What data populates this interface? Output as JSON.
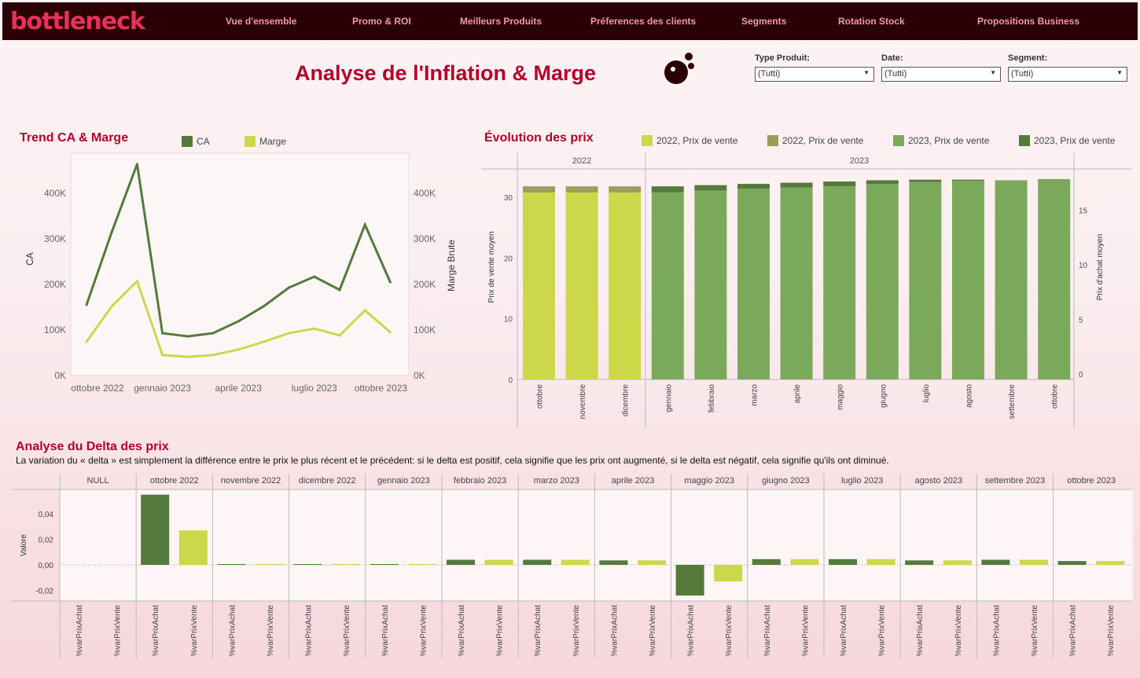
{
  "nav": {
    "logo": "bottleneck",
    "items": [
      "Vue d'ensemble",
      "Promo & ROI",
      "Meilleurs Produits",
      "Préferences des clients",
      "Segments",
      "Rotation Stock",
      "Propositions Business"
    ]
  },
  "title": "Analyse de l'Inflation & Marge",
  "filters": [
    {
      "label": "Type Produit:",
      "value": "(Tutti)"
    },
    {
      "label": "Date:",
      "value": "(Tutti)"
    },
    {
      "label": "Segment:",
      "value": "(Tutti)"
    }
  ],
  "colors": {
    "dark_green": "#547a3c",
    "light_green": "#ccd84a",
    "mid_green": "#7ba95c",
    "olive": "#9c9c5c",
    "brand": "#b5002b"
  },
  "chart_data": [
    {
      "type": "line",
      "title": "Trend CA & Marge",
      "ylabel": "CA",
      "ylabel_right": "Marge Brute",
      "ylim": [
        0,
        500000
      ],
      "yticks": [
        "0K",
        "100K",
        "200K",
        "300K",
        "400K"
      ],
      "xticks": [
        "ottobre 2022",
        "gennaio 2023",
        "aprile 2023",
        "luglio 2023",
        "ottobre 2023"
      ],
      "x": [
        "ottobre 2022",
        "novembre 2022",
        "dicembre 2022",
        "gennaio 2023",
        "febbraio 2023",
        "marzo 2023",
        "aprile 2023",
        "maggio 2023",
        "giugno 2023",
        "luglio 2023",
        "agosto 2023",
        "settembre 2023",
        "ottobre 2023"
      ],
      "series": [
        {
          "name": "CA",
          "values": [
            155000,
            315000,
            464000,
            93000,
            86000,
            93000,
            119000,
            152000,
            193000,
            217000,
            188000,
            331000,
            205000
          ]
        },
        {
          "name": "Marge",
          "values": [
            74000,
            152000,
            207000,
            45000,
            41000,
            45000,
            57000,
            74000,
            93000,
            103000,
            88000,
            143000,
            95000
          ]
        }
      ]
    },
    {
      "type": "bar",
      "title": "Évolution des prix",
      "ylabel": "Prix de vente moyen",
      "ylabel_right": "Prix d'achat moyen",
      "ylim": [
        0,
        34
      ],
      "yticks": [
        0,
        10,
        20,
        30
      ],
      "yticks_right": [
        0,
        5,
        10,
        15
      ],
      "groups": [
        {
          "label": "2022",
          "months": [
            "ottobre",
            "novembre",
            "dicembre"
          ]
        },
        {
          "label": "2023",
          "months": [
            "gennaio",
            "febbraio",
            "marzo",
            "aprile",
            "maggio",
            "giugno",
            "luglio",
            "agosto",
            "settembre",
            "ottobre"
          ]
        }
      ],
      "legend": [
        "2022, Prix de vente",
        "2022, Prix de vente",
        "2023, Prix de vente",
        "2023, Prix de vente"
      ],
      "base": [
        30.8,
        30.8,
        30.8,
        30.8,
        31.1,
        31.4,
        31.6,
        31.8,
        32.2,
        32.5,
        32.7,
        32.8,
        33.0
      ],
      "top": [
        1.0,
        1.0,
        1.0,
        1.0,
        0.9,
        0.8,
        0.8,
        0.8,
        0.6,
        0.4,
        0.2,
        0,
        0
      ]
    },
    {
      "type": "bar",
      "title": "Analyse du Delta des prix",
      "ylabel": "Valore",
      "ylim": [
        -0.025,
        0.06
      ],
      "yticks": [
        "-0,02",
        "0,00",
        "0,02",
        "0,04"
      ],
      "categories": [
        "NULL",
        "ottobre 2022",
        "novembre 2022",
        "dicembre 2022",
        "gennaio 2023",
        "febbraio 2023",
        "marzo 2023",
        "aprile 2023",
        "maggio 2023",
        "giugno 2023",
        "luglio 2023",
        "agosto 2023",
        "settembre 2023",
        "ottobre 2023"
      ],
      "measures": [
        "%varPrixAchat",
        "%varPrixVente"
      ],
      "series": [
        {
          "name": "%varPrixAchat",
          "values": [
            null,
            0.055,
            0.0005,
            0.0005,
            0.0005,
            0.004,
            0.004,
            0.0035,
            -0.024,
            0.0045,
            0.0045,
            0.0035,
            0.004,
            0.003
          ]
        },
        {
          "name": "%varPrixVente",
          "values": [
            null,
            0.027,
            0.0005,
            0.0005,
            0.0005,
            0.004,
            0.004,
            0.0035,
            -0.013,
            0.0045,
            0.0045,
            0.0035,
            0.004,
            0.003
          ]
        }
      ]
    }
  ],
  "delta_description": "La variation du « delta » est simplement la différence entre le prix le plus récent et le précédent: si le delta est positif, cela signifie que les prix ont augmenté, si le delta est négatif, cela signifie qu'ils ont diminué."
}
